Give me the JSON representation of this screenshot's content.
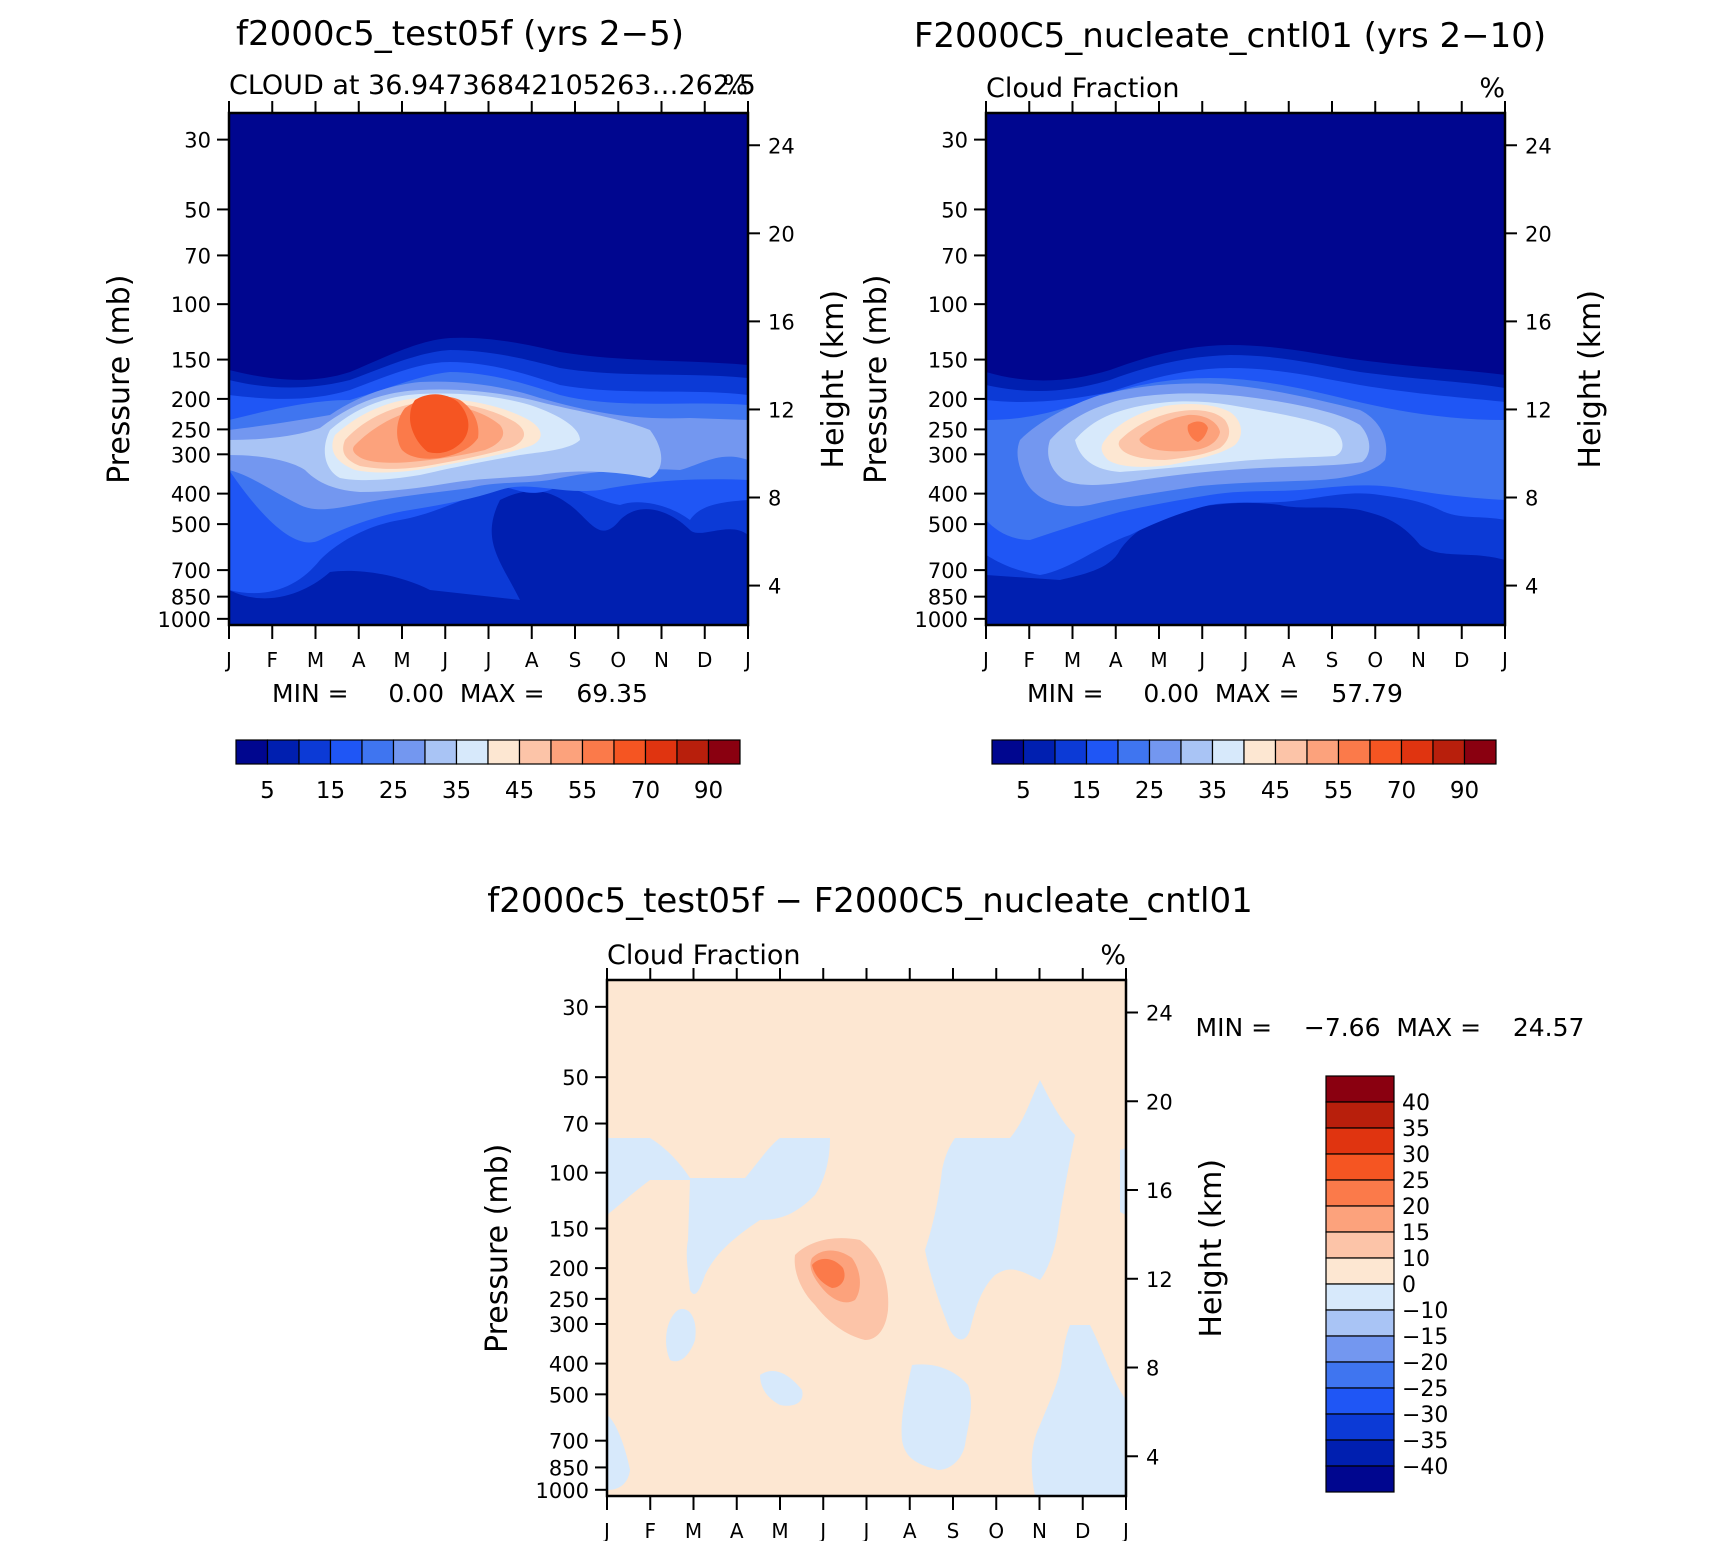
{
  "months": [
    "J",
    "F",
    "M",
    "A",
    "M",
    "J",
    "J",
    "A",
    "S",
    "O",
    "N",
    "D",
    "J"
  ],
  "pressure_ticks": [
    "30",
    "50",
    "70",
    "100",
    "150",
    "200",
    "250",
    "300",
    "400",
    "500",
    "700",
    "850",
    "1000"
  ],
  "height_ticks": [
    "24",
    "20",
    "16",
    "12",
    "8",
    "4"
  ],
  "pressure_label": "Pressure (mb)",
  "height_label": "Height (km)",
  "chart_data": [
    {
      "type": "contour",
      "id": "test",
      "title": "f2000c5_test05f (yrs 2−5)",
      "subtitle_left": "CLOUD at 36.94736842105263…262.5",
      "subtitle_right": "%",
      "stats": "MIN =     0.00  MAX =    69.35",
      "min": 0.0,
      "max": 69.35,
      "x_categories": [
        "J",
        "F",
        "M",
        "A",
        "M",
        "J",
        "J",
        "A",
        "S",
        "O",
        "N",
        "D",
        "J"
      ],
      "y_axis": "pressure (mb), log scale",
      "ylim": [
        1000,
        30
      ],
      "peak": {
        "month": "Jun",
        "pressure_mb": 225,
        "value": 69.35
      },
      "colorbar_labels": [
        "5",
        "15",
        "25",
        "35",
        "45",
        "55",
        "70",
        "90"
      ],
      "colorbar_colors": [
        "#00068f",
        "#001fb0",
        "#0c3ad6",
        "#1f56f5",
        "#3f75f0",
        "#7397f0",
        "#a9c4f5",
        "#d7e9fb",
        "#fde7d2",
        "#fcc4a8",
        "#fca27c",
        "#fb7a4a",
        "#f55522",
        "#e03410",
        "#b81f0c",
        "#8a0010"
      ]
    },
    {
      "type": "contour",
      "id": "cntl",
      "title": "F2000C5_nucleate_cntl01 (yrs 2−10)",
      "subtitle_left": "Cloud Fraction",
      "subtitle_right": "%",
      "stats": "MIN =     0.00  MAX =    57.79",
      "min": 0.0,
      "max": 57.79,
      "x_categories": [
        "J",
        "F",
        "M",
        "A",
        "M",
        "J",
        "J",
        "A",
        "S",
        "O",
        "N",
        "D",
        "J"
      ],
      "y_axis": "pressure (mb), log scale",
      "ylim": [
        1000,
        30
      ],
      "peak": {
        "month": "Jun",
        "pressure_mb": 240,
        "value": 57.79
      },
      "colorbar_labels": [
        "5",
        "15",
        "25",
        "35",
        "45",
        "55",
        "70",
        "90"
      ],
      "colorbar_colors": [
        "#00068f",
        "#001fb0",
        "#0c3ad6",
        "#1f56f5",
        "#3f75f0",
        "#7397f0",
        "#a9c4f5",
        "#d7e9fb",
        "#fde7d2",
        "#fcc4a8",
        "#fca27c",
        "#fb7a4a",
        "#f55522",
        "#e03410",
        "#b81f0c",
        "#8a0010"
      ]
    },
    {
      "type": "contour",
      "id": "diff",
      "title": "f2000c5_test05f − F2000C5_nucleate_cntl01",
      "subtitle_left": "Cloud Fraction",
      "subtitle_right": "%",
      "stats": "MIN =    −7.66  MAX =    24.57",
      "min": -7.66,
      "max": 24.57,
      "x_categories": [
        "J",
        "F",
        "M",
        "A",
        "M",
        "J",
        "J",
        "A",
        "S",
        "O",
        "N",
        "D",
        "J"
      ],
      "y_axis": "pressure (mb), log scale",
      "ylim": [
        1000,
        30
      ],
      "peak": {
        "month": "Jun",
        "pressure_mb": 180,
        "value": 24.57
      },
      "colorbar_labels": [
        "40",
        "35",
        "30",
        "25",
        "20",
        "15",
        "10",
        "0",
        "−10",
        "−15",
        "−20",
        "−25",
        "−30",
        "−35",
        "−40"
      ],
      "colorbar_colors": [
        "#8a0010",
        "#b81f0c",
        "#e03410",
        "#f55522",
        "#fb7a4a",
        "#fca27c",
        "#fcc4a8",
        "#fde7d2",
        "#d7e9fb",
        "#a9c4f5",
        "#7397f0",
        "#3f75f0",
        "#1f56f5",
        "#0c3ad6",
        "#001fb0",
        "#00068f"
      ]
    }
  ]
}
